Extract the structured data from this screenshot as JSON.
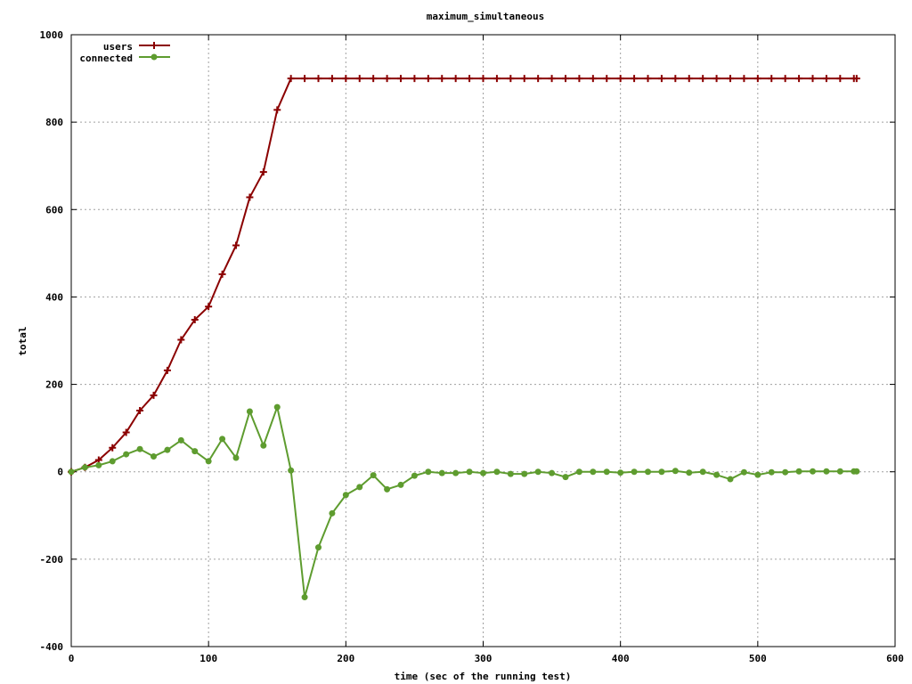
{
  "chart_data": {
    "type": "line",
    "title": "maximum_simultaneous",
    "xlabel": "time (sec of the running test)",
    "ylabel": "total",
    "xlim": [
      0,
      600
    ],
    "ylim": [
      -400,
      1000
    ],
    "xticks": [
      0,
      100,
      200,
      300,
      400,
      500,
      600
    ],
    "yticks": [
      -400,
      -200,
      0,
      200,
      400,
      600,
      800,
      1000
    ],
    "grid": true,
    "legend_position": "top-left",
    "x": [
      0,
      10,
      20,
      30,
      40,
      50,
      60,
      70,
      80,
      90,
      100,
      110,
      120,
      130,
      140,
      150,
      160,
      170,
      180,
      190,
      200,
      210,
      220,
      230,
      240,
      250,
      260,
      270,
      280,
      290,
      300,
      310,
      320,
      330,
      340,
      350,
      360,
      370,
      380,
      390,
      400,
      410,
      420,
      430,
      440,
      450,
      460,
      470,
      480,
      490,
      500,
      510,
      520,
      530,
      540,
      550,
      560,
      570,
      572
    ],
    "series": [
      {
        "name": "users",
        "color": "#8b0000",
        "marker": "plus",
        "values": [
          0,
          10,
          27,
          55,
          90,
          140,
          175,
          232,
          302,
          348,
          378,
          452,
          518,
          628,
          686,
          828,
          900,
          900,
          900,
          900,
          900,
          900,
          900,
          900,
          900,
          900,
          900,
          900,
          900,
          900,
          900,
          900,
          900,
          900,
          900,
          900,
          900,
          900,
          900,
          900,
          900,
          900,
          900,
          900,
          900,
          900,
          900,
          900,
          900,
          900,
          900,
          900,
          900,
          900,
          900,
          900,
          900,
          900,
          900
        ]
      },
      {
        "name": "connected",
        "color": "#5e9c2f",
        "marker": "circle",
        "values": [
          0,
          10,
          15,
          24,
          40,
          52,
          35,
          50,
          72,
          47,
          24,
          75,
          32,
          138,
          60,
          148,
          3,
          -287,
          -173,
          -95,
          -53,
          -35,
          -8,
          -40,
          -30,
          -9,
          0,
          -3,
          -3,
          0,
          -3,
          0,
          -5,
          -5,
          0,
          -3,
          -12,
          0,
          0,
          0,
          -2,
          0,
          0,
          0,
          2,
          -2,
          0,
          -7,
          -17,
          -1,
          -7,
          -1,
          -1,
          1,
          1,
          1,
          1,
          1,
          1
        ]
      }
    ]
  }
}
